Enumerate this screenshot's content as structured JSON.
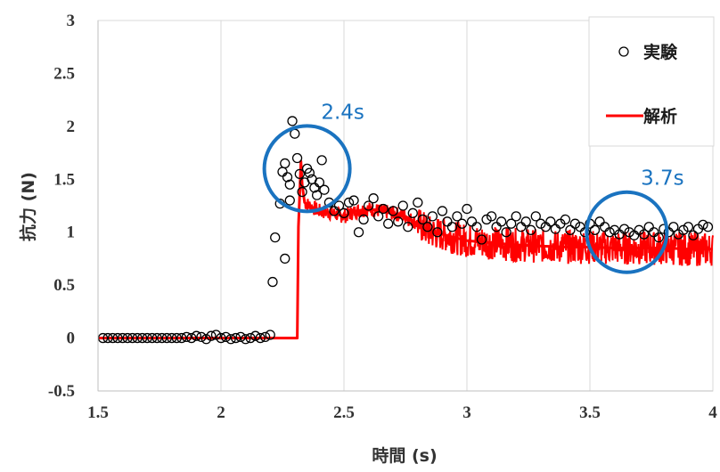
{
  "chart_data": {
    "type": "scatter",
    "xlabel": "時間 (s)",
    "ylabel": "抗力 (N)",
    "xlim": [
      1.5,
      4
    ],
    "ylim": [
      -0.5,
      3
    ],
    "x_ticks": [
      "1.5",
      "2",
      "2.5",
      "3",
      "3.5",
      "4"
    ],
    "y_ticks": [
      "-0.5",
      "0",
      "0.5",
      "1",
      "1.5",
      "2",
      "2.5",
      "3"
    ],
    "grid": "vertical",
    "legend_position": "top-right",
    "series": [
      {
        "name": "実験",
        "marker": "open-circle",
        "color": "#000000",
        "points": [
          [
            1.52,
            0.0
          ],
          [
            1.54,
            0.0
          ],
          [
            1.56,
            0.0
          ],
          [
            1.58,
            0.0
          ],
          [
            1.6,
            0.0
          ],
          [
            1.62,
            0.0
          ],
          [
            1.64,
            0.0
          ],
          [
            1.66,
            0.0
          ],
          [
            1.68,
            0.0
          ],
          [
            1.7,
            0.0
          ],
          [
            1.72,
            0.0
          ],
          [
            1.74,
            0.0
          ],
          [
            1.76,
            0.0
          ],
          [
            1.78,
            0.0
          ],
          [
            1.8,
            0.0
          ],
          [
            1.82,
            0.0
          ],
          [
            1.84,
            0.0
          ],
          [
            1.86,
            0.01
          ],
          [
            1.88,
            0.0
          ],
          [
            1.9,
            0.02
          ],
          [
            1.92,
            0.01
          ],
          [
            1.94,
            -0.01
          ],
          [
            1.96,
            0.02
          ],
          [
            1.98,
            0.03
          ],
          [
            2.0,
            0.0
          ],
          [
            2.02,
            0.01
          ],
          [
            2.04,
            -0.01
          ],
          [
            2.06,
            0.0
          ],
          [
            2.08,
            0.01
          ],
          [
            2.1,
            -0.01
          ],
          [
            2.12,
            0.0
          ],
          [
            2.14,
            0.02
          ],
          [
            2.16,
            0.0
          ],
          [
            2.18,
            0.01
          ],
          [
            2.2,
            0.03
          ],
          [
            2.21,
            0.53
          ],
          [
            2.22,
            0.95
          ],
          [
            2.24,
            1.27
          ],
          [
            2.26,
            0.75
          ],
          [
            2.28,
            1.3
          ],
          [
            2.29,
            2.05
          ],
          [
            2.3,
            1.93
          ],
          [
            2.31,
            1.7
          ],
          [
            2.32,
            1.55
          ],
          [
            2.33,
            1.38
          ],
          [
            2.34,
            1.47
          ],
          [
            2.35,
            1.6
          ],
          [
            2.36,
            1.56
          ],
          [
            2.37,
            1.5
          ],
          [
            2.38,
            1.42
          ],
          [
            2.39,
            1.35
          ],
          [
            2.4,
            1.47
          ],
          [
            2.41,
            1.68
          ],
          [
            2.42,
            1.4
          ],
          [
            2.25,
            1.57
          ],
          [
            2.26,
            1.65
          ],
          [
            2.27,
            1.52
          ],
          [
            2.28,
            1.45
          ],
          [
            2.44,
            1.28
          ],
          [
            2.46,
            1.2
          ],
          [
            2.48,
            1.25
          ],
          [
            2.5,
            1.18
          ],
          [
            2.52,
            1.28
          ],
          [
            2.54,
            1.3
          ],
          [
            2.56,
            1.0
          ],
          [
            2.58,
            1.12
          ],
          [
            2.6,
            1.25
          ],
          [
            2.62,
            1.32
          ],
          [
            2.64,
            1.15
          ],
          [
            2.66,
            1.22
          ],
          [
            2.68,
            1.08
          ],
          [
            2.7,
            1.2
          ],
          [
            2.72,
            1.1
          ],
          [
            2.74,
            1.25
          ],
          [
            2.76,
            1.05
          ],
          [
            2.78,
            1.18
          ],
          [
            2.8,
            1.28
          ],
          [
            2.82,
            1.12
          ],
          [
            2.84,
            1.05
          ],
          [
            2.86,
            1.15
          ],
          [
            2.88,
            1.0
          ],
          [
            2.9,
            1.2
          ],
          [
            2.92,
            1.1
          ],
          [
            2.94,
            1.05
          ],
          [
            2.96,
            1.15
          ],
          [
            2.98,
            1.08
          ],
          [
            3.0,
            1.22
          ],
          [
            3.02,
            1.1
          ],
          [
            3.04,
            1.05
          ],
          [
            3.06,
            0.93
          ],
          [
            3.08,
            1.12
          ],
          [
            3.1,
            1.15
          ],
          [
            3.12,
            1.05
          ],
          [
            3.14,
            1.1
          ],
          [
            3.16,
            1.0
          ],
          [
            3.18,
            1.08
          ],
          [
            3.2,
            1.15
          ],
          [
            3.22,
            1.05
          ],
          [
            3.24,
            1.1
          ],
          [
            3.26,
            1.02
          ],
          [
            3.28,
            1.15
          ],
          [
            3.3,
            1.08
          ],
          [
            3.32,
            1.05
          ],
          [
            3.34,
            1.1
          ],
          [
            3.36,
            1.03
          ],
          [
            3.38,
            1.08
          ],
          [
            3.4,
            1.12
          ],
          [
            3.42,
            1.02
          ],
          [
            3.44,
            1.08
          ],
          [
            3.46,
            1.05
          ],
          [
            3.48,
            1.0
          ],
          [
            3.5,
            1.08
          ],
          [
            3.52,
            1.02
          ],
          [
            3.54,
            1.1
          ],
          [
            3.56,
            1.05
          ],
          [
            3.58,
            1.0
          ],
          [
            3.6,
            1.02
          ],
          [
            3.62,
            0.98
          ],
          [
            3.64,
            1.03
          ],
          [
            3.66,
            1.0
          ],
          [
            3.68,
            0.97
          ],
          [
            3.7,
            1.02
          ],
          [
            3.72,
            0.98
          ],
          [
            3.74,
            1.05
          ],
          [
            3.76,
            1.0
          ],
          [
            3.78,
            0.95
          ],
          [
            3.8,
            1.03
          ],
          [
            3.82,
            1.0
          ],
          [
            3.84,
            1.05
          ],
          [
            3.86,
            0.98
          ],
          [
            3.88,
            1.02
          ],
          [
            3.9,
            1.05
          ],
          [
            3.92,
            0.97
          ],
          [
            3.94,
            1.03
          ],
          [
            3.96,
            1.07
          ],
          [
            3.98,
            1.05
          ]
        ]
      },
      {
        "name": "解析",
        "type": "line",
        "color": "#ff0000",
        "points": [
          [
            1.5,
            0.0
          ],
          [
            2.31,
            0.0
          ],
          [
            2.315,
            1.05
          ],
          [
            2.32,
            1.35
          ],
          [
            2.325,
            1.67
          ],
          [
            2.33,
            1.45
          ],
          [
            2.34,
            1.28
          ],
          [
            2.36,
            1.25
          ],
          [
            2.4,
            1.2
          ],
          [
            2.45,
            1.18
          ],
          [
            2.5,
            1.15
          ],
          [
            2.55,
            1.2
          ],
          [
            2.6,
            1.22
          ],
          [
            2.65,
            1.2
          ],
          [
            2.7,
            1.18
          ],
          [
            2.75,
            1.15
          ],
          [
            2.8,
            1.08
          ],
          [
            2.85,
            1.0
          ],
          [
            2.9,
            0.98
          ],
          [
            2.95,
            0.95
          ],
          [
            3.0,
            0.92
          ],
          [
            3.1,
            0.9
          ],
          [
            3.2,
            0.88
          ],
          [
            3.3,
            0.87
          ],
          [
            3.4,
            0.86
          ],
          [
            3.5,
            0.86
          ],
          [
            3.6,
            0.85
          ],
          [
            3.7,
            0.85
          ],
          [
            3.8,
            0.85
          ],
          [
            3.9,
            0.84
          ],
          [
            4.0,
            0.84
          ]
        ]
      }
    ],
    "annotations": [
      {
        "text": "2.4s",
        "color": "#1a73c0",
        "circle_center": [
          2.35,
          1.6
        ]
      },
      {
        "text": "3.7s",
        "color": "#1a73c0",
        "circle_center": [
          3.65,
          1.0
        ]
      }
    ]
  }
}
